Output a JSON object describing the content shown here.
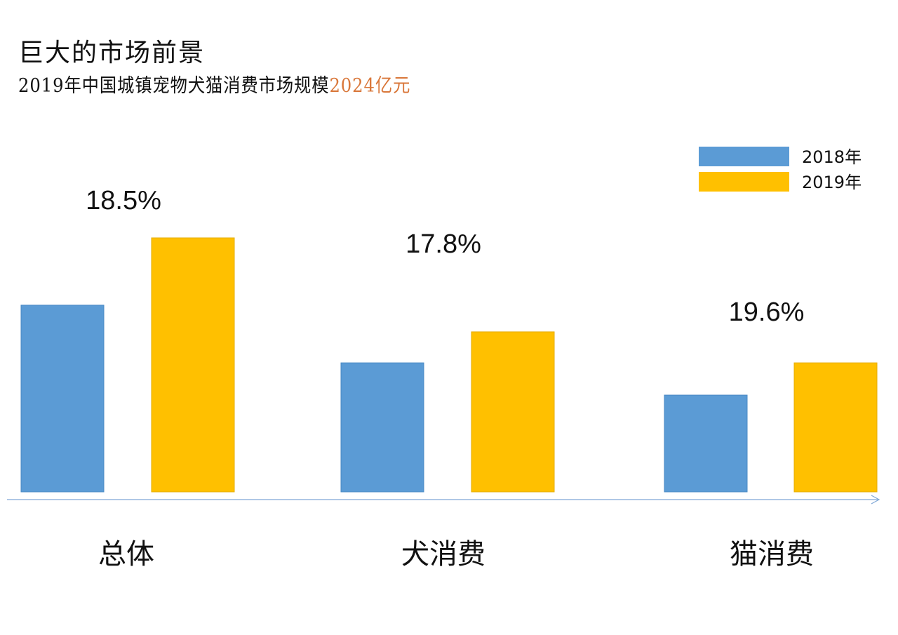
{
  "title": "巨大的市场前景",
  "subtitle": {
    "text": "2019年中国城镇宠物犬猫消费市场规模",
    "highlight": "2024亿元"
  },
  "colors": {
    "2018": "#5B9BD5",
    "2019": "#FFC000",
    "highlight": "#D9773A",
    "axis": "#7FA7D6"
  },
  "chart_data": {
    "type": "bar",
    "categories": [
      "总体",
      "犬消费",
      "猫消费"
    ],
    "series": [
      {
        "name": "2018年",
        "values": [
          73.5,
          50.8,
          38.1
        ]
      },
      {
        "name": "2019年",
        "values": [
          100,
          63.0,
          50.8
        ]
      }
    ],
    "annotations": [
      "18.5%",
      "17.8%",
      "19.6%"
    ],
    "value_units": "relative (2019 总体 = 100); no y axis printed",
    "ylim": [
      0,
      100
    ],
    "grid": false,
    "legend": "top-right"
  }
}
